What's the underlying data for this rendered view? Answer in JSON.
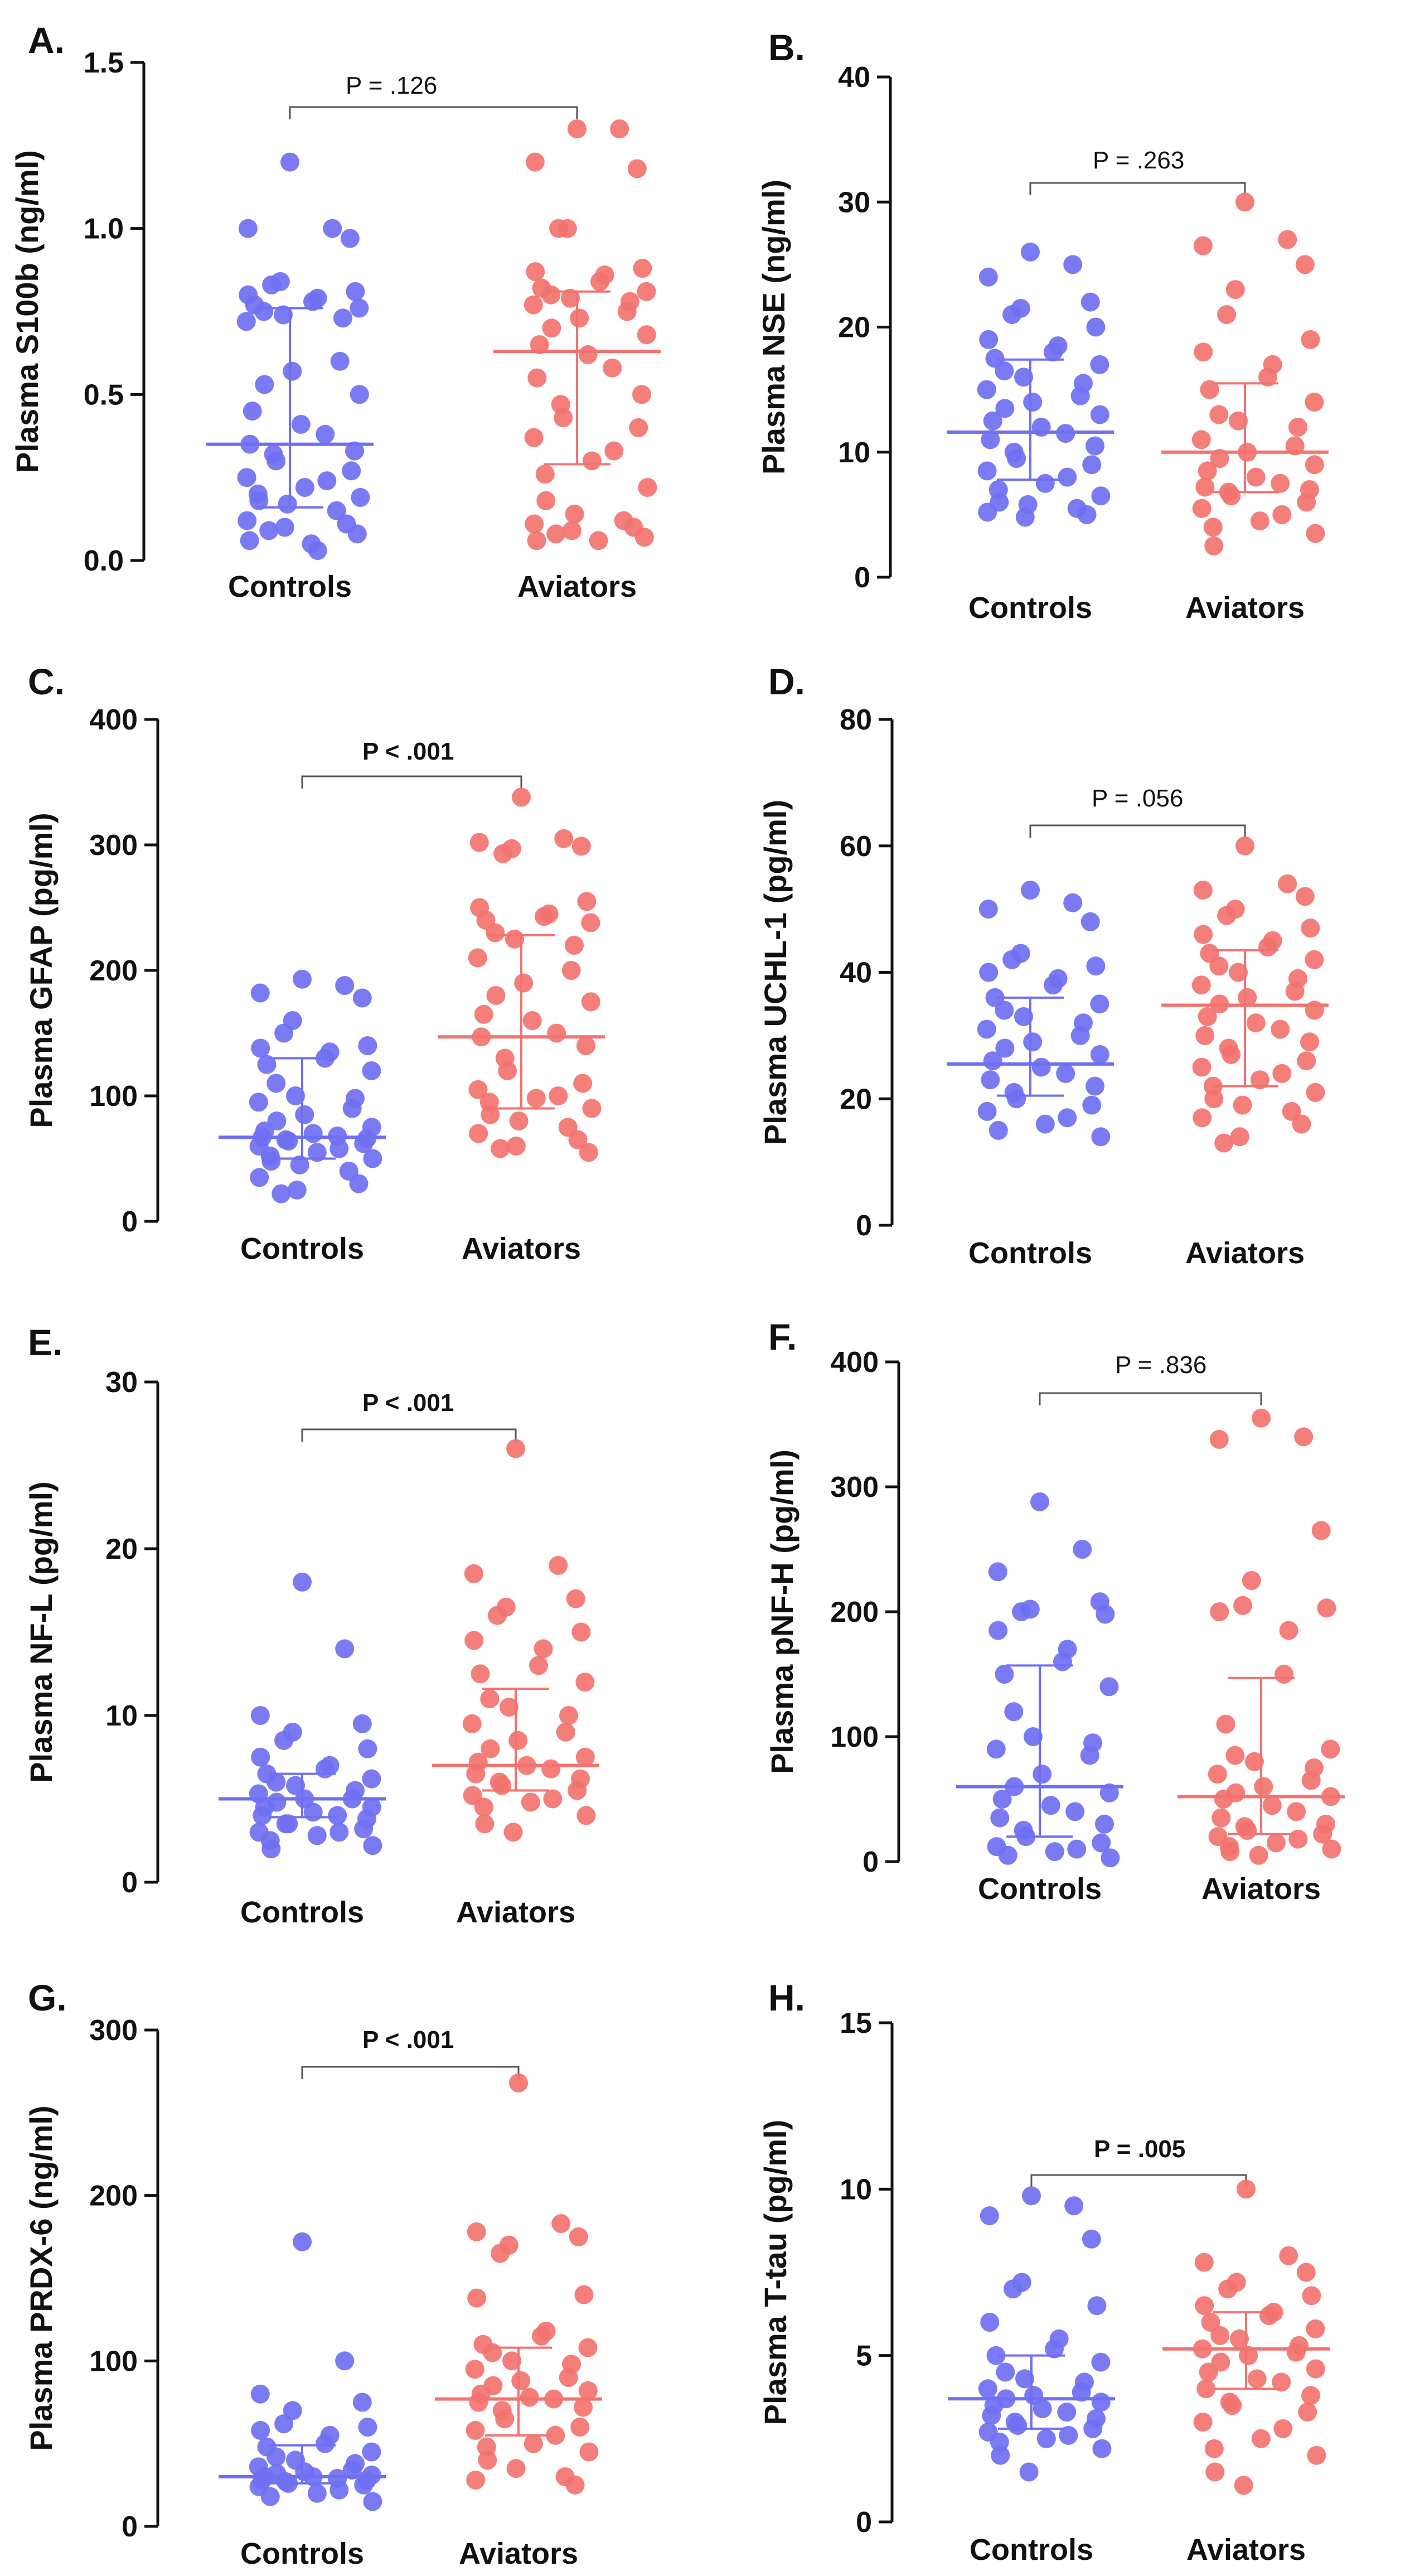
{
  "figure": {
    "colors": {
      "controls": "#6f6ff2",
      "aviators": "#f2736f"
    }
  },
  "chart_data": [
    {
      "letter": "A.",
      "type": "scatter",
      "ylabel": "Plasma S100b (ng/ml)",
      "ylim": [
        0,
        1.5
      ],
      "yticks": [
        "0.0",
        "0.5",
        "1.0",
        "1.5"
      ],
      "yvals": [
        0,
        0.5,
        1.0,
        1.5
      ],
      "categories": [
        "Controls",
        "Aviators"
      ],
      "p_text": "P = .126",
      "p_bold": false,
      "series": [
        {
          "name": "Controls",
          "median": 0.35,
          "q1": 0.16,
          "q3": 0.76,
          "values": [
            1.2,
            1.0,
            1.0,
            0.97,
            0.84,
            0.83,
            0.81,
            0.8,
            0.79,
            0.78,
            0.77,
            0.76,
            0.75,
            0.74,
            0.73,
            0.72,
            0.6,
            0.57,
            0.53,
            0.5,
            0.45,
            0.41,
            0.38,
            0.35,
            0.33,
            0.32,
            0.3,
            0.27,
            0.25,
            0.24,
            0.22,
            0.2,
            0.19,
            0.18,
            0.17,
            0.15,
            0.12,
            0.11,
            0.1,
            0.09,
            0.08,
            0.06,
            0.05,
            0.03
          ]
        },
        {
          "name": "Aviators",
          "median": 0.63,
          "q1": 0.29,
          "q3": 0.81,
          "values": [
            1.3,
            1.3,
            1.2,
            1.18,
            1.0,
            1.0,
            0.88,
            0.87,
            0.86,
            0.84,
            0.82,
            0.81,
            0.8,
            0.79,
            0.78,
            0.77,
            0.75,
            0.73,
            0.7,
            0.68,
            0.65,
            0.62,
            0.58,
            0.55,
            0.5,
            0.47,
            0.43,
            0.4,
            0.37,
            0.33,
            0.3,
            0.26,
            0.22,
            0.18,
            0.14,
            0.12,
            0.11,
            0.1,
            0.09,
            0.08,
            0.07,
            0.06,
            0.06
          ]
        }
      ]
    },
    {
      "letter": "B.",
      "type": "scatter",
      "ylabel": "Plasma NSE (ng/ml)",
      "ylim": [
        0,
        40
      ],
      "yticks": [
        "0",
        "10",
        "20",
        "30",
        "40"
      ],
      "yvals": [
        0,
        10,
        20,
        30,
        40
      ],
      "categories": [
        "Controls",
        "Aviators"
      ],
      "p_text": "P = .263",
      "p_bold": false,
      "series": [
        {
          "name": "Controls",
          "median": 11.6,
          "q1": 7.8,
          "q3": 17.4,
          "values": [
            26,
            25,
            24,
            22,
            21.5,
            21,
            20,
            19,
            18.5,
            18,
            17.5,
            17,
            16.5,
            16,
            15.5,
            15,
            14.5,
            14,
            13.5,
            13,
            12.5,
            12,
            11.5,
            11,
            10.5,
            10,
            9.5,
            9,
            8.5,
            8,
            7.5,
            7,
            6.5,
            6,
            5.8,
            5.5,
            5.2,
            5,
            4.8
          ]
        },
        {
          "name": "Aviators",
          "median": 10.0,
          "q1": 6.8,
          "q3": 15.5,
          "values": [
            30,
            27,
            26.5,
            25,
            23,
            21,
            19,
            18,
            17,
            16,
            15,
            14,
            13,
            12.5,
            12,
            11,
            10.5,
            10,
            9.5,
            9,
            8.5,
            8,
            7.5,
            7.2,
            7,
            6.8,
            6.5,
            6,
            5.5,
            5,
            4.5,
            4,
            3.5,
            2.5
          ]
        }
      ]
    },
    {
      "letter": "C.",
      "type": "scatter",
      "ylabel": "Plasma GFAP (pg/ml)",
      "ylim": [
        0,
        400
      ],
      "yticks": [
        "0",
        "100",
        "200",
        "300",
        "400"
      ],
      "yvals": [
        0,
        100,
        200,
        300,
        400
      ],
      "categories": [
        "Controls",
        "Aviators"
      ],
      "p_text": "P < .001",
      "p_bold": true,
      "series": [
        {
          "name": "Controls",
          "median": 67,
          "q1": 50,
          "q3": 130,
          "values": [
            193,
            188,
            182,
            178,
            160,
            150,
            140,
            138,
            135,
            130,
            125,
            120,
            110,
            100,
            98,
            95,
            90,
            85,
            80,
            75,
            72,
            70,
            68,
            67,
            66,
            65,
            64,
            62,
            60,
            58,
            55,
            52,
            50,
            48,
            45,
            40,
            35,
            30,
            25,
            22
          ]
        },
        {
          "name": "Aviators",
          "median": 147,
          "q1": 90,
          "q3": 228,
          "values": [
            338,
            305,
            302,
            299,
            297,
            293,
            255,
            250,
            245,
            243,
            240,
            238,
            230,
            225,
            220,
            210,
            200,
            190,
            180,
            175,
            165,
            160,
            150,
            147,
            140,
            130,
            120,
            110,
            105,
            100,
            98,
            95,
            90,
            85,
            80,
            75,
            70,
            65,
            60,
            58,
            55
          ]
        }
      ]
    },
    {
      "letter": "D.",
      "type": "scatter",
      "ylabel": "Plasma UCHL-1 (pg/ml)",
      "ylim": [
        0,
        80
      ],
      "yticks": [
        "0",
        "20",
        "40",
        "60",
        "80"
      ],
      "yvals": [
        0,
        20,
        40,
        60,
        80
      ],
      "categories": [
        "Controls",
        "Aviators"
      ],
      "p_text": "P = .056",
      "p_bold": false,
      "series": [
        {
          "name": "Controls",
          "median": 25.5,
          "q1": 20.5,
          "q3": 36,
          "values": [
            53,
            51,
            50,
            48,
            43,
            42,
            41,
            40,
            39,
            38,
            36,
            35,
            34,
            33,
            32,
            31,
            30,
            29,
            28,
            27,
            26,
            25,
            24,
            23,
            22,
            21,
            20,
            19,
            18,
            17,
            16,
            15,
            14
          ]
        },
        {
          "name": "Aviators",
          "median": 34.8,
          "q1": 22,
          "q3": 43.5,
          "values": [
            60,
            54,
            53,
            52,
            50,
            49,
            47,
            46,
            45,
            44,
            43,
            42,
            41,
            40,
            39,
            38,
            37,
            36,
            35,
            34,
            33,
            32,
            31,
            30,
            29,
            28,
            27,
            26,
            25,
            24,
            23,
            22,
            21,
            20,
            19,
            18,
            17,
            16,
            14,
            13
          ]
        }
      ]
    },
    {
      "letter": "E.",
      "type": "scatter",
      "ylabel": "Plasma NF-L (pg/ml)",
      "ylim": [
        0,
        30
      ],
      "yticks": [
        "0",
        "10",
        "20",
        "30"
      ],
      "yvals": [
        0,
        10,
        20,
        30
      ],
      "categories": [
        "Controls",
        "Aviators"
      ],
      "p_text": "P < .001",
      "p_bold": true,
      "series": [
        {
          "name": "Controls",
          "median": 5.0,
          "q1": 3.9,
          "q3": 6.5,
          "values": [
            18,
            14,
            10,
            9.5,
            9,
            8.5,
            8,
            7.5,
            7,
            6.8,
            6.5,
            6.2,
            6,
            5.8,
            5.5,
            5.3,
            5,
            5,
            4.8,
            4.5,
            4.5,
            4.2,
            4,
            4,
            3.8,
            3.5,
            3.5,
            3.2,
            3,
            3,
            2.8,
            2.5,
            2.2,
            2
          ]
        },
        {
          "name": "Aviators",
          "median": 7.0,
          "q1": 5.5,
          "q3": 11.6,
          "values": [
            26,
            19,
            18.5,
            17,
            16.5,
            16,
            15,
            14.5,
            14,
            13,
            12.5,
            12,
            11,
            10.5,
            10,
            9.5,
            9,
            8.5,
            8,
            7.5,
            7.2,
            7,
            6.8,
            6.5,
            6.2,
            6,
            5.8,
            5.5,
            5.2,
            5,
            4.8,
            4.5,
            4,
            3.5,
            3
          ]
        }
      ]
    },
    {
      "letter": "F.",
      "type": "scatter",
      "ylabel": "Plasma pNF-H (pg/ml)",
      "ylim": [
        0,
        400
      ],
      "yticks": [
        "0",
        "100",
        "200",
        "300",
        "400"
      ],
      "yvals": [
        0,
        100,
        200,
        300,
        400
      ],
      "categories": [
        "Controls",
        "Aviators"
      ],
      "p_text": "P = .836",
      "p_bold": false,
      "series": [
        {
          "name": "Controls",
          "median": 60,
          "q1": 20,
          "q3": 157,
          "values": [
            288,
            250,
            232,
            208,
            202,
            200,
            198,
            185,
            170,
            160,
            150,
            140,
            120,
            100,
            95,
            90,
            85,
            70,
            60,
            55,
            50,
            45,
            40,
            35,
            30,
            25,
            20,
            15,
            12,
            10,
            8,
            5,
            3
          ]
        },
        {
          "name": "Aviators",
          "median": 52,
          "q1": 22,
          "q3": 147,
          "values": [
            355,
            340,
            338,
            265,
            225,
            205,
            203,
            200,
            185,
            150,
            110,
            90,
            85,
            80,
            75,
            70,
            65,
            60,
            55,
            52,
            50,
            45,
            40,
            35,
            30,
            28,
            25,
            22,
            20,
            18,
            15,
            12,
            10,
            8,
            5
          ]
        }
      ]
    },
    {
      "letter": "G.",
      "type": "scatter",
      "ylabel": "Plasma PRDX-6 (ng/ml)",
      "ylim": [
        0,
        300
      ],
      "yticks": [
        "0",
        "100",
        "200",
        "300"
      ],
      "yvals": [
        0,
        100,
        200,
        300
      ],
      "categories": [
        "Controls",
        "Aviators"
      ],
      "p_text": "P < .001",
      "p_bold": true,
      "series": [
        {
          "name": "Controls",
          "median": 30,
          "q1": 26,
          "q3": 49,
          "values": [
            172,
            100,
            80,
            75,
            70,
            62,
            60,
            58,
            55,
            50,
            48,
            45,
            42,
            40,
            38,
            36,
            34,
            33,
            32,
            31,
            30,
            30,
            29,
            28,
            28,
            27,
            26,
            25,
            24,
            22,
            20,
            18,
            15
          ]
        },
        {
          "name": "Aviators",
          "median": 77,
          "q1": 55,
          "q3": 108,
          "values": [
            268,
            183,
            178,
            175,
            170,
            165,
            140,
            138,
            118,
            115,
            110,
            108,
            105,
            100,
            98,
            95,
            90,
            88,
            85,
            82,
            80,
            78,
            77,
            75,
            72,
            70,
            65,
            60,
            58,
            55,
            50,
            48,
            45,
            40,
            35,
            30,
            28,
            25
          ]
        }
      ]
    },
    {
      "letter": "H.",
      "type": "scatter",
      "ylabel": "Plasma T-tau (pg/ml)",
      "ylim": [
        0,
        15
      ],
      "yticks": [
        "0",
        "5",
        "10",
        "15"
      ],
      "yvals": [
        0,
        5,
        10,
        15
      ],
      "categories": [
        "Controls",
        "Aviators"
      ],
      "p_text": "P = .005",
      "p_bold": true,
      "series": [
        {
          "name": "Controls",
          "median": 3.7,
          "q1": 2.8,
          "q3": 5.0,
          "values": [
            9.8,
            9.5,
            9.2,
            8.5,
            7.2,
            7,
            6.5,
            6,
            5.5,
            5.2,
            5,
            4.8,
            4.5,
            4.3,
            4.2,
            4,
            3.9,
            3.8,
            3.7,
            3.6,
            3.5,
            3.4,
            3.3,
            3.2,
            3.1,
            3,
            2.9,
            2.8,
            2.7,
            2.6,
            2.5,
            2.4,
            2.2,
            2,
            1.5
          ]
        },
        {
          "name": "Aviators",
          "median": 5.2,
          "q1": 4.0,
          "q3": 6.3,
          "values": [
            10,
            8,
            7.8,
            7.5,
            7.2,
            7,
            6.8,
            6.5,
            6.3,
            6.2,
            6,
            5.8,
            5.6,
            5.5,
            5.3,
            5.2,
            5.1,
            5,
            4.8,
            4.6,
            4.5,
            4.3,
            4.2,
            4,
            3.8,
            3.6,
            3.5,
            3.3,
            3,
            2.8,
            2.5,
            2.2,
            2,
            1.5,
            1.1
          ]
        }
      ]
    }
  ]
}
